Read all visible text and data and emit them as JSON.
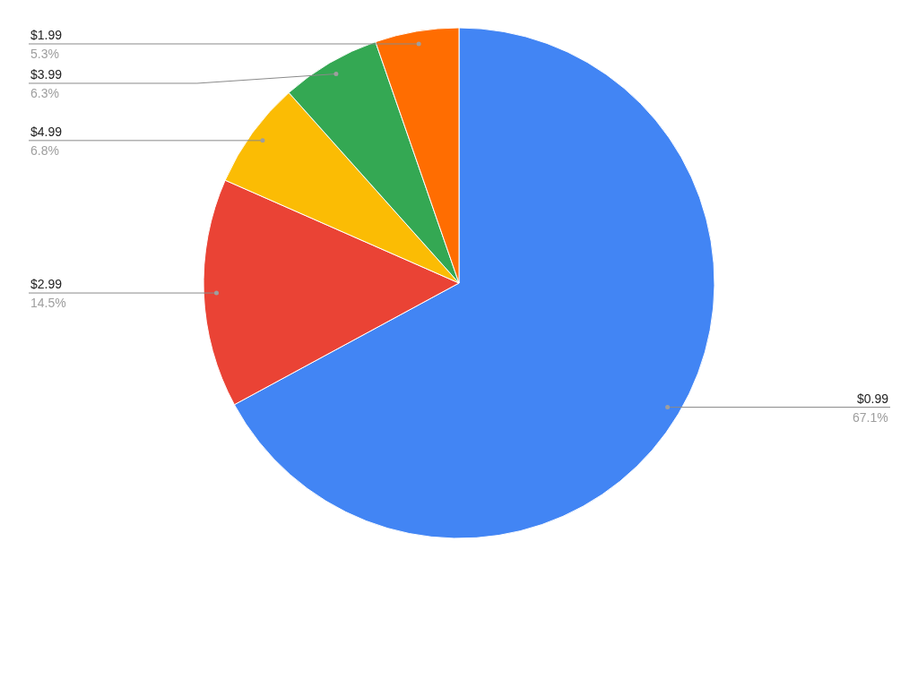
{
  "chart_data": {
    "type": "pie",
    "categories": [
      "$0.99",
      "$2.99",
      "$4.99",
      "$3.99",
      "$1.99"
    ],
    "values": [
      67.1,
      14.5,
      6.8,
      6.3,
      5.3
    ],
    "value_labels": [
      "67.1%",
      "14.5%",
      "6.8%",
      "6.3%",
      "5.3%"
    ],
    "colors": [
      "#4285f4",
      "#ea4335",
      "#fbbc04",
      "#34a853",
      "#ff6d01"
    ],
    "legend": false
  }
}
